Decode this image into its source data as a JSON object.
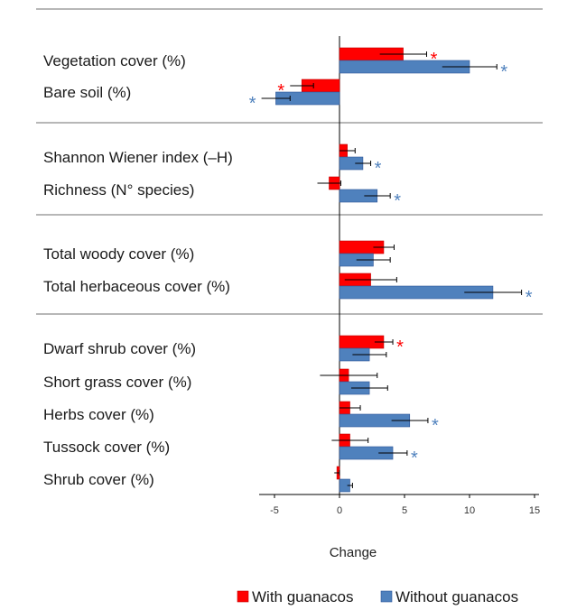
{
  "chart_data": {
    "type": "bar",
    "orientation": "horizontal",
    "xlabel": "Change",
    "xlim": [
      -5,
      15
    ],
    "xticks": [
      "-5",
      "0",
      "5",
      "10",
      "15"
    ],
    "legend_position": "bottom",
    "series": [
      {
        "name": "With guanacos",
        "color": "#ff0000"
      },
      {
        "name": "Without guanacos",
        "color": "#4f81bd"
      }
    ],
    "groups": [
      {
        "rows": [
          {
            "label": "Vegetation cover  (%)",
            "with": 4.9,
            "with_err": 1.8,
            "with_sig": "*",
            "without": 10.0,
            "without_err": 2.1,
            "without_sig": "*"
          },
          {
            "label": "Bare soil (%)",
            "with": -2.9,
            "with_err": 0.9,
            "with_sig": "*",
            "without": -4.9,
            "without_err": 1.1,
            "without_sig": "*"
          }
        ]
      },
      {
        "rows": [
          {
            "label": "Shannon Wiener index (–H)",
            "with": 0.6,
            "with_err": 0.6,
            "with_sig": "",
            "without": 1.8,
            "without_err": 0.6,
            "without_sig": "*"
          },
          {
            "label": "Richness (N° species)",
            "with": -0.8,
            "with_err": 0.9,
            "with_sig": "",
            "without": 2.9,
            "without_err": 1.0,
            "without_sig": "*"
          }
        ]
      },
      {
        "rows": [
          {
            "label": "Total woody cover (%)",
            "with": 3.4,
            "with_err": 0.8,
            "with_sig": "",
            "without": 2.6,
            "without_err": 1.3,
            "without_sig": ""
          },
          {
            "label": "Total herbaceous cover (%)",
            "with": 2.4,
            "with_err": 2.0,
            "with_sig": "",
            "without": 11.8,
            "without_err": 2.2,
            "without_sig": "*"
          }
        ]
      },
      {
        "rows": [
          {
            "label": "Dwarf shrub cover (%)",
            "with": 3.4,
            "with_err": 0.7,
            "with_sig": "*",
            "without": 2.3,
            "without_err": 1.3,
            "without_sig": ""
          },
          {
            "label": "Short grass cover (%)",
            "with": 0.7,
            "with_err": 2.2,
            "with_sig": "",
            "without": 2.3,
            "without_err": 1.4,
            "without_sig": ""
          },
          {
            "label": "Herbs cover (%)",
            "with": 0.8,
            "with_err": 0.8,
            "with_sig": "",
            "without": 5.4,
            "without_err": 1.4,
            "without_sig": "*"
          },
          {
            "label": "Tussock cover (%)",
            "with": 0.8,
            "with_err": 1.4,
            "with_sig": "",
            "without": 4.1,
            "without_err": 1.1,
            "without_sig": "*"
          },
          {
            "label": "Shrub cover (%)",
            "with": -0.2,
            "with_err": 0.2,
            "with_sig": "",
            "without": 0.8,
            "without_err": 0.2,
            "without_sig": ""
          }
        ]
      }
    ]
  }
}
